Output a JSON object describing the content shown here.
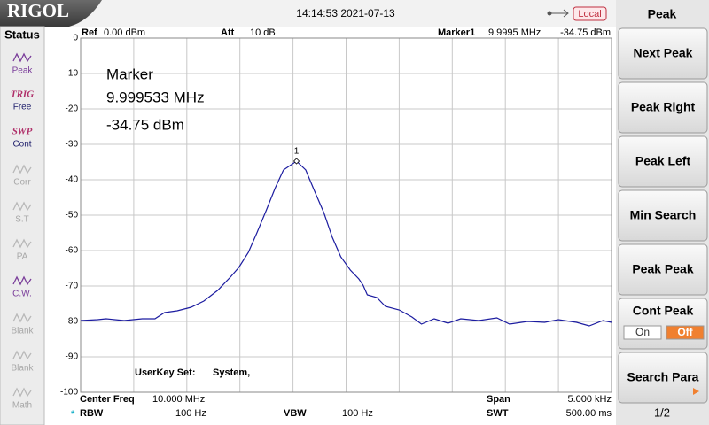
{
  "header": {
    "logo": "RIGOL",
    "datetime": "14:14:53 2021-07-13",
    "remote": "Local"
  },
  "status": {
    "title": "Status",
    "items": [
      {
        "label": "Peak",
        "enabled": true
      },
      {
        "tag": "TRIG",
        "label": "Free",
        "enabled": true
      },
      {
        "tag": "SWP",
        "label": "Cont",
        "enabled": true
      },
      {
        "label": "Corr",
        "enabled": false
      },
      {
        "label": "S.T",
        "enabled": false
      },
      {
        "label": "PA",
        "enabled": false
      },
      {
        "label": "C.W.",
        "enabled": true
      },
      {
        "label": "Blank",
        "enabled": false
      },
      {
        "label": "Blank",
        "enabled": false
      },
      {
        "label": "Math",
        "enabled": false
      }
    ]
  },
  "menu": {
    "title": "Peak",
    "keys": [
      {
        "label": "Next Peak"
      },
      {
        "label": "Peak Right"
      },
      {
        "label": "Peak Left"
      },
      {
        "label": "Min Search"
      },
      {
        "label": "Peak Peak"
      },
      {
        "label": "Cont Peak",
        "options": [
          "On",
          "Off"
        ],
        "selected": 1
      },
      {
        "label": "Search Para",
        "submenu": true
      }
    ],
    "page": "1/2"
  },
  "chart_data": {
    "type": "line",
    "ref_label": "Ref",
    "ref": "0.00 dBm",
    "att_label": "Att",
    "att": "10 dB",
    "marker_label": "Marker1",
    "marker_freq": "9.9995 MHz",
    "marker_level": "-34.75 dBm",
    "readout": [
      "Marker",
      "9.999533 MHz",
      "-34.75 dBm"
    ],
    "user_key": "UserKey Set:",
    "user_key_value": "System,",
    "center_label": "Center Freq",
    "center": "10.000 MHz",
    "span_label": "Span",
    "span": "5.000 kHz",
    "rbw_flag": "*",
    "rbw_label": "RBW",
    "rbw": "100 Hz",
    "vbw_label": "VBW",
    "vbw": "100 Hz",
    "swt_label": "SWT",
    "swt": "500.00 ms",
    "color": "#1c1ca0",
    "grid": true,
    "xlim": [
      9.9975,
      10.0025
    ],
    "xticks": [
      9.9975,
      9.998,
      9.9985,
      9.999,
      9.9995,
      10,
      10.0005,
      10.001,
      10.0015,
      10.002,
      10.0025
    ],
    "ylim": [
      -100,
      0
    ],
    "yticks": [
      0,
      -10,
      -20,
      -30,
      -40,
      -50,
      -60,
      -70,
      -80,
      -90,
      -100
    ],
    "x": [
      9.9975,
      9.99766,
      9.99774,
      9.99791,
      9.99808,
      9.9982,
      9.99829,
      9.99841,
      9.99854,
      9.99866,
      9.99879,
      9.99891,
      9.99899,
      9.99908,
      9.99916,
      9.99925,
      9.99933,
      9.99941,
      9.999533,
      9.99962,
      9.9997,
      9.99979,
      9.99987,
      9.99995,
      10.00004,
      10.00012,
      10.00016,
      10.0002,
      10.00029,
      10.00037,
      10.0005,
      10.00062,
      10.00071,
      10.00083,
      10.00096,
      10.00108,
      10.00125,
      10.00142,
      10.00154,
      10.00171,
      10.00187,
      10.002,
      10.00217,
      10.00229,
      10.00242,
      10.0025
    ],
    "values": [
      -79.75,
      -79.5,
      -79.25,
      -79.75,
      -79.25,
      -79.25,
      -77.5,
      -77,
      -76,
      -74.25,
      -71.25,
      -67.5,
      -64.75,
      -60.5,
      -55,
      -48.5,
      -42.5,
      -37.25,
      -34.75,
      -37.25,
      -43,
      -49.25,
      -56.25,
      -61.75,
      -65.5,
      -68,
      -69.75,
      -72.5,
      -73.25,
      -75.75,
      -76.75,
      -78.75,
      -80.75,
      -79.25,
      -80.5,
      -79.25,
      -79.75,
      -79,
      -80.75,
      -80,
      -80.25,
      -79.5,
      -80.25,
      -81.25,
      -79.75,
      -80.25
    ],
    "marker": {
      "x": 9.999533,
      "y": -34.75,
      "label": "1"
    }
  }
}
